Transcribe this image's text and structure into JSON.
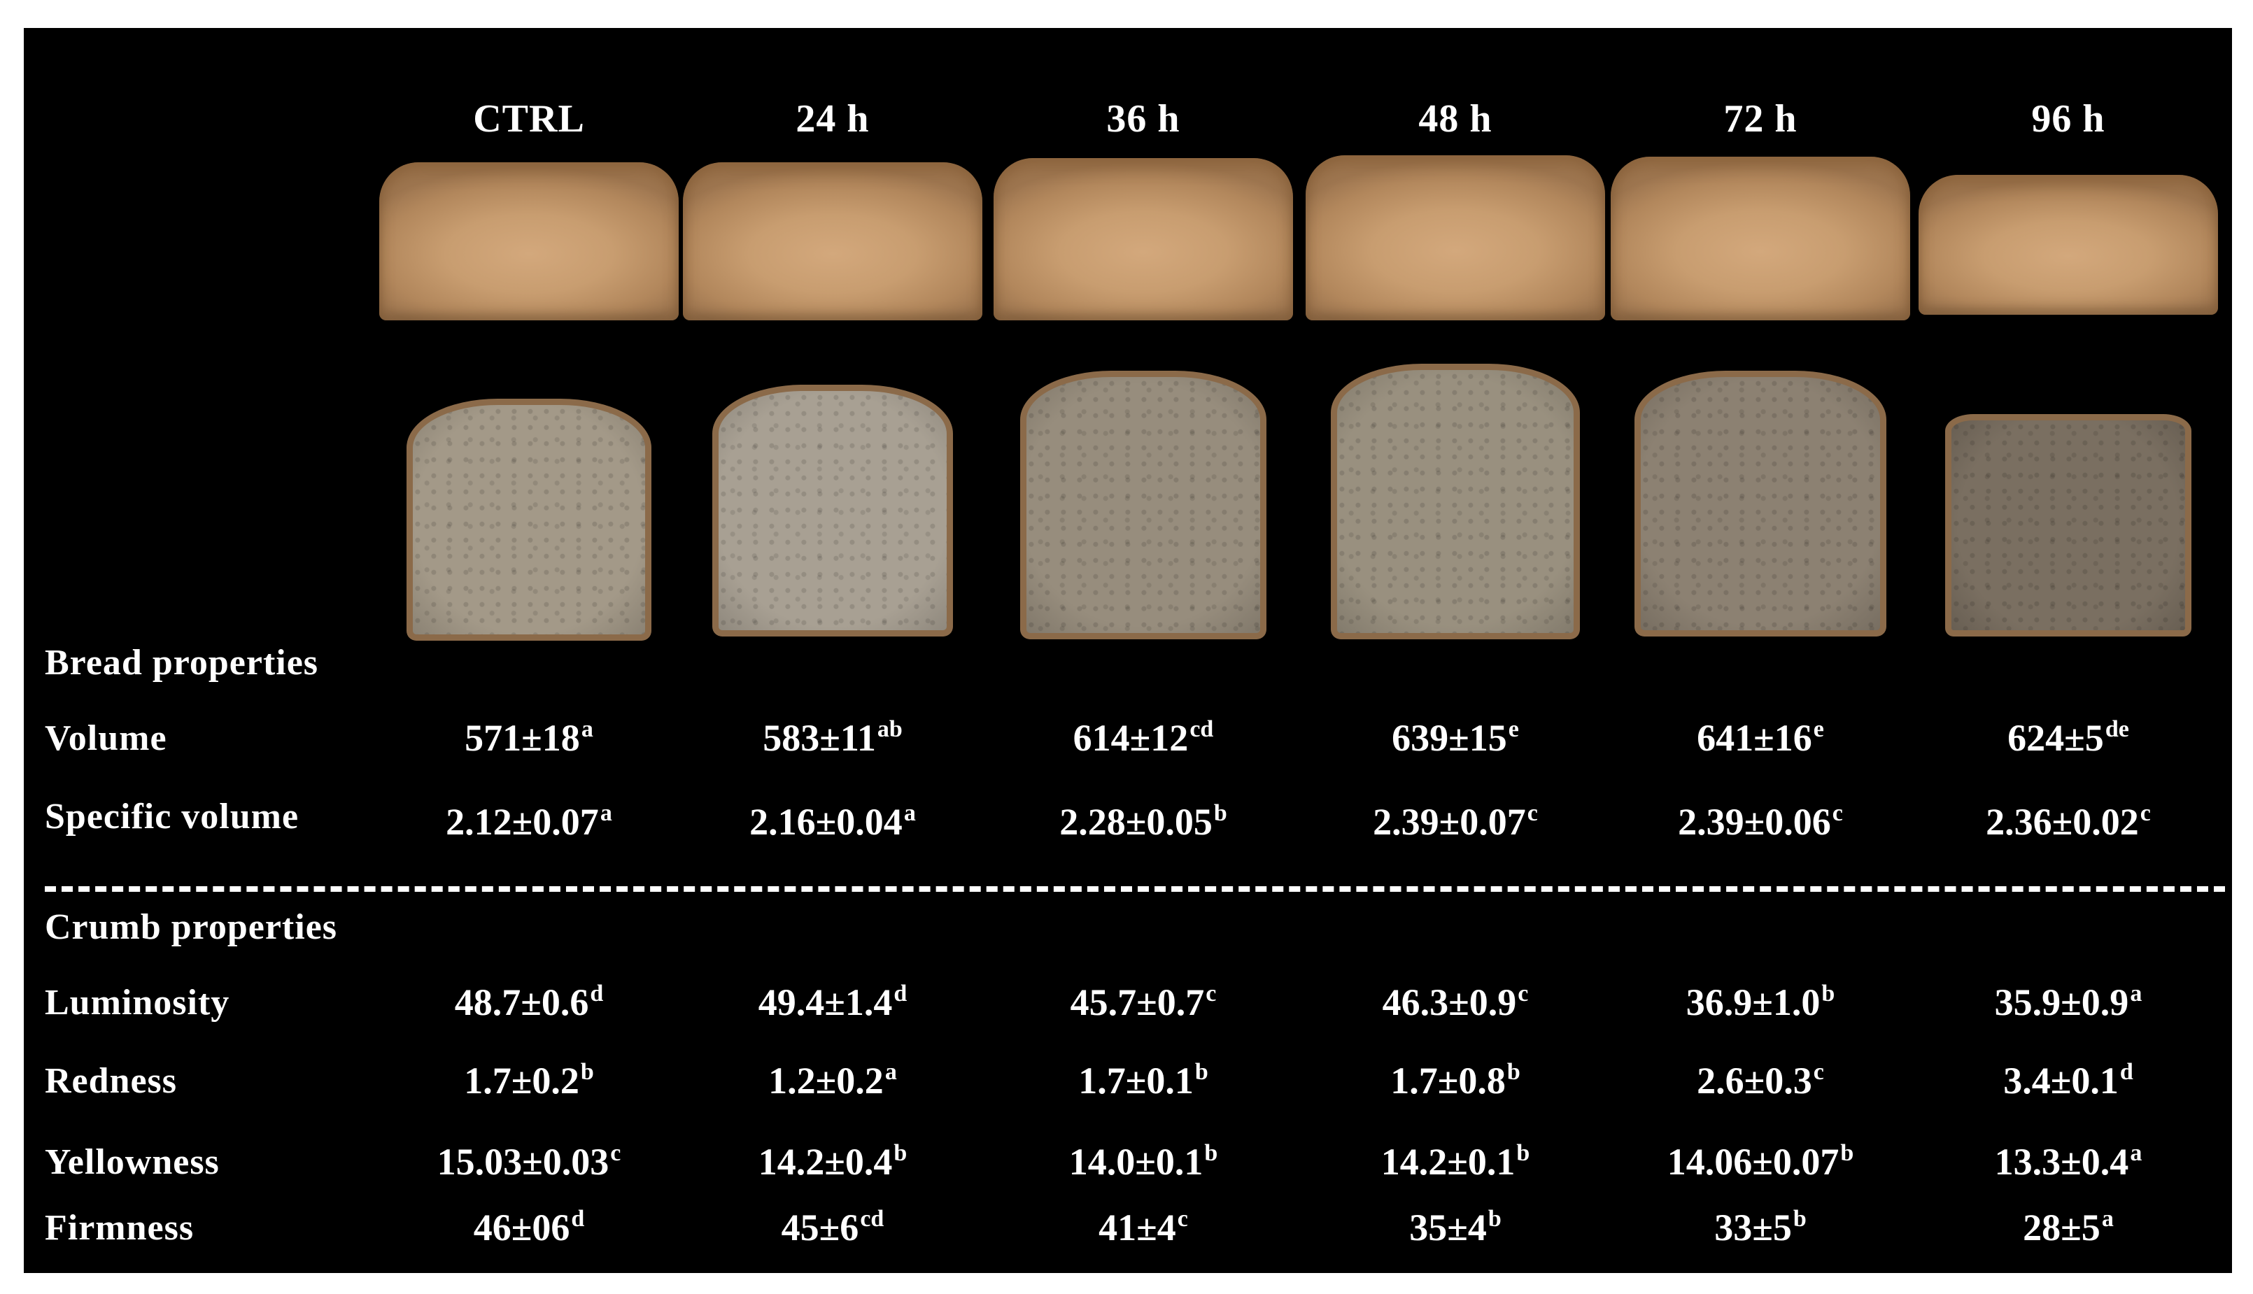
{
  "columns": [
    "CTRL",
    "24 h",
    "36 h",
    "48 h",
    "72 h",
    "96 h"
  ],
  "crumb_colors": [
    "#a39988",
    "#a8a093",
    "#978d7d",
    "#99907f",
    "#8c8172",
    "#7a6f61"
  ],
  "sections": {
    "bread": "Bread properties",
    "crumb": "Crumb properties"
  },
  "rows": [
    {
      "label": "Volume",
      "cells": [
        {
          "v": "571±18",
          "s": "a"
        },
        {
          "v": "583±11",
          "s": "ab"
        },
        {
          "v": "614±12",
          "s": "cd"
        },
        {
          "v": "639±15",
          "s": "e"
        },
        {
          "v": "641±16",
          "s": "e"
        },
        {
          "v": "624±5",
          "s": "de"
        }
      ]
    },
    {
      "label": "Specific volume",
      "cells": [
        {
          "v": "2.12±0.07",
          "s": "a"
        },
        {
          "v": "2.16±0.04",
          "s": "a"
        },
        {
          "v": "2.28±0.05",
          "s": "b"
        },
        {
          "v": "2.39±0.07",
          "s": "c"
        },
        {
          "v": "2.39±0.06",
          "s": "c"
        },
        {
          "v": "2.36±0.02",
          "s": "c"
        }
      ]
    },
    {
      "label": "Luminosity",
      "cells": [
        {
          "v": "48.7±0.6",
          "s": "d"
        },
        {
          "v": "49.4±1.4",
          "s": "d"
        },
        {
          "v": "45.7±0.7",
          "s": "c"
        },
        {
          "v": "46.3±0.9",
          "s": "c"
        },
        {
          "v": "36.9±1.0",
          "s": "b"
        },
        {
          "v": "35.9±0.9",
          "s": "a"
        }
      ]
    },
    {
      "label": "Redness",
      "cells": [
        {
          "v": "1.7±0.2",
          "s": "b"
        },
        {
          "v": "1.2±0.2",
          "s": "a"
        },
        {
          "v": "1.7±0.1",
          "s": "b"
        },
        {
          "v": "1.7±0.8",
          "s": "b"
        },
        {
          "v": "2.6±0.3",
          "s": "c"
        },
        {
          "v": "3.4±0.1",
          "s": "d"
        }
      ]
    },
    {
      "label": "Yellowness",
      "cells": [
        {
          "v": "15.03±0.03",
          "s": "c"
        },
        {
          "v": "14.2±0.4",
          "s": "b"
        },
        {
          "v": "14.0±0.1",
          "s": "b"
        },
        {
          "v": "14.2±0.1",
          "s": "b"
        },
        {
          "v": "14.06±0.07",
          "s": "b"
        },
        {
          "v": "13.3±0.4",
          "s": "a"
        }
      ]
    },
    {
      "label": "Firmness",
      "cells": [
        {
          "v": "46±06",
          "s": "d"
        },
        {
          "v": "45±6",
          "s": "cd"
        },
        {
          "v": "41±4",
          "s": "c"
        },
        {
          "v": "35±4",
          "s": "b"
        },
        {
          "v": "33±5",
          "s": "b"
        },
        {
          "v": "28±5",
          "s": "a"
        }
      ]
    }
  ]
}
